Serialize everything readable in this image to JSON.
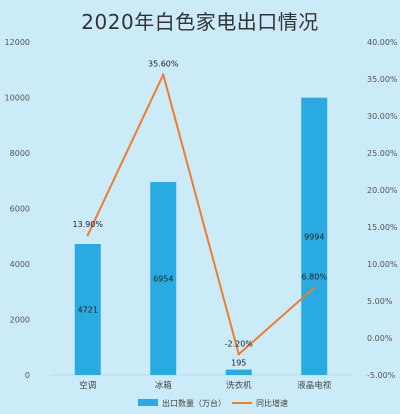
{
  "chart_data": {
    "type": "bar",
    "title": "2020年白色家电出口情况",
    "categories": [
      "空调",
      "冰箱",
      "洗衣机",
      "液晶电视"
    ],
    "series": [
      {
        "name": "出口数量（万台）",
        "type": "bar",
        "axis": "left",
        "values": [
          4721,
          6954,
          195,
          9994
        ],
        "labels": [
          "4721",
          "6954",
          "195",
          "9994"
        ]
      },
      {
        "name": "同比增速",
        "type": "line",
        "axis": "right",
        "values": [
          13.9,
          35.6,
          -2.2,
          6.8
        ],
        "labels": [
          "13.90%",
          "35.60%",
          "-2.20%",
          "6.80%"
        ]
      }
    ],
    "ylim_left": [
      0,
      12000
    ],
    "ylim_right": [
      -5,
      40
    ],
    "left_ticks": [
      "0",
      "2000",
      "4000",
      "6000",
      "8000",
      "10000",
      "12000"
    ],
    "right_ticks": [
      "-5.00%",
      "0.00%",
      "5.00%",
      "10.00%",
      "15.00%",
      "20.00%",
      "25.00%",
      "30.00%",
      "35.00%",
      "40.00%"
    ],
    "grid": false,
    "legend_position": "bottom",
    "colors": {
      "bar": "#29abe2",
      "line": "#ed7d31",
      "background": "#ccebf8"
    }
  }
}
